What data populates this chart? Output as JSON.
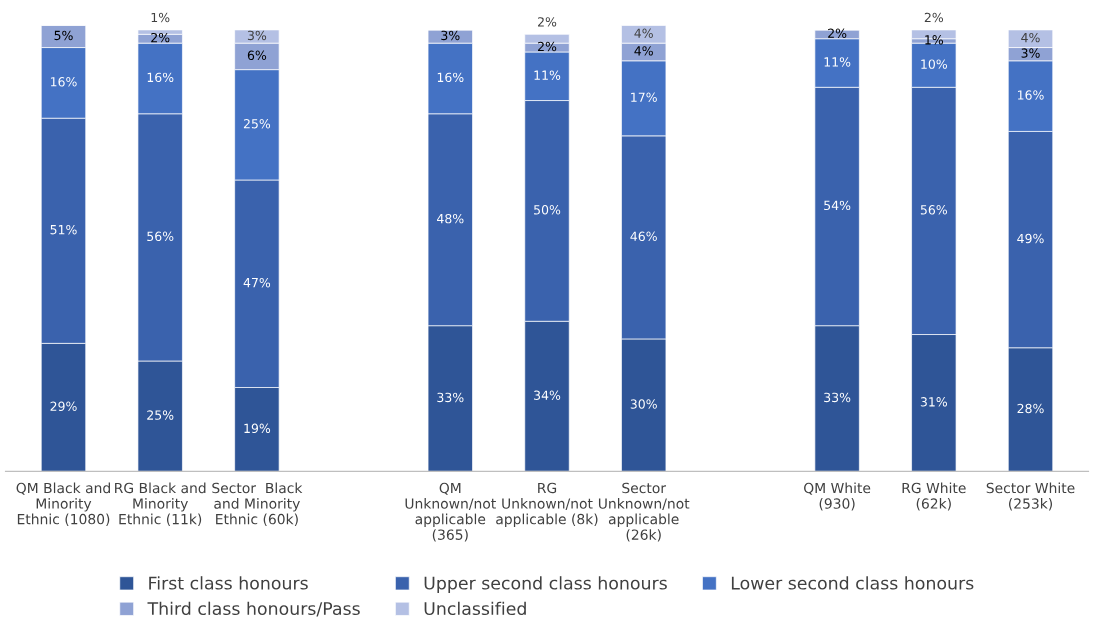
{
  "chart_data": {
    "type": "bar",
    "stacked": true,
    "legend": "bottom",
    "grid": false,
    "categories": [
      "QM Black and\nMinority\nEthnic (1080)",
      "RG Black and\nMinority\nEthnic (11k)",
      "Sector  Black\nand Minority\nEthnic (60k)",
      null,
      "QM\nUnknown/not\napplicable\n(365)",
      "RG\nUnknown/not\napplicable (8k)",
      "Sector\nUnknown/not\napplicable\n(26k)",
      null,
      "QM White\n(930)",
      "RG White\n(62k)",
      "Sector White\n(253k)"
    ],
    "series": [
      {
        "name": "First class honours",
        "color": "#2f5597",
        "values": [
          29,
          25,
          19,
          null,
          33,
          34,
          30,
          null,
          33,
          31,
          28
        ],
        "value_labels": [
          "29%",
          "25%",
          "19%",
          null,
          "33%",
          "34%",
          "30%",
          null,
          "33%",
          "31%",
          "28%"
        ]
      },
      {
        "name": "Upper second class honours",
        "color": "#3a62ad",
        "values": [
          51,
          56,
          47,
          null,
          48,
          50,
          46,
          null,
          54,
          56,
          49
        ],
        "value_labels": [
          "51%",
          "56%",
          "47%",
          null,
          "48%",
          "50%",
          "46%",
          null,
          "54%",
          "56%",
          "49%"
        ]
      },
      {
        "name": "Lower second class honours",
        "color": "#4472c4",
        "values": [
          16,
          16,
          25,
          null,
          16,
          11,
          17,
          null,
          11,
          10,
          16
        ],
        "value_labels": [
          "16%",
          "16%",
          "25%",
          null,
          "16%",
          "11%",
          "17%",
          null,
          "11%",
          "10%",
          "16%"
        ]
      },
      {
        "name": "Third class honours/Pass",
        "color": "#8fa2d4",
        "values": [
          5,
          2,
          6,
          null,
          3,
          2,
          4,
          null,
          2,
          1,
          3
        ],
        "value_labels": [
          "5%",
          "2%",
          "6%",
          null,
          "3%",
          "2%",
          "4%",
          null,
          "2%",
          "1%",
          "3%"
        ]
      },
      {
        "name": "Unclassified",
        "color": "#b4c0e4",
        "values": [
          null,
          1,
          3,
          null,
          null,
          2,
          4,
          null,
          null,
          2,
          4
        ],
        "value_labels": [
          null,
          "1%",
          "3%",
          null,
          null,
          "2%",
          "4%",
          null,
          null,
          "2%",
          "4%"
        ]
      }
    ]
  }
}
